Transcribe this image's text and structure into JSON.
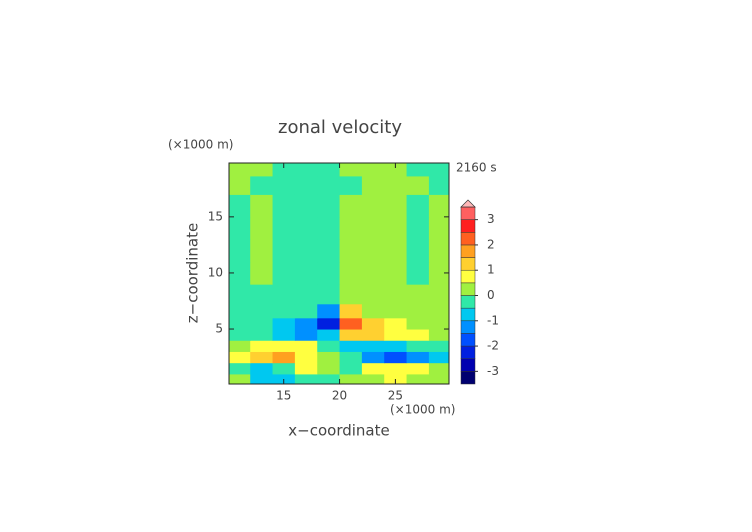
{
  "chart_data": {
    "type": "contour",
    "title": "zonal velocity",
    "time_label": "2160 s",
    "x_unit": "(×1000 m)",
    "y_unit": "(×1000 m)",
    "xlabel": "x−coordinate",
    "ylabel": "z−coordinate",
    "xlim": [
      10.1,
      29.8
    ],
    "ylim": [
      0.1,
      19.8
    ],
    "xticks": [
      15,
      20,
      25
    ],
    "yticks": [
      5,
      10,
      15
    ],
    "x": [
      11,
      13,
      15,
      17,
      19,
      21,
      23,
      25,
      27,
      29
    ],
    "y": [
      0.5,
      1.5,
      2.5,
      3.5,
      4.5,
      5.5,
      6.5,
      8,
      10,
      12,
      14,
      16,
      18,
      19.3
    ],
    "z": [
      [
        0.3,
        -0.6,
        -0.8,
        -0.4,
        -0.2,
        0.3,
        0.4,
        0.6,
        0.3,
        0.2
      ],
      [
        -0.3,
        -0.6,
        -0.5,
        0.6,
        0.4,
        -0.3,
        0.6,
        0.8,
        0.6,
        0.3
      ],
      [
        0.8,
        1.3,
        1.8,
        0.7,
        0.3,
        -0.5,
        -1.3,
        -1.8,
        -1.3,
        -0.8
      ],
      [
        0.3,
        0.8,
        0.9,
        0.6,
        -0.3,
        -0.8,
        -0.7,
        -0.6,
        -0.3,
        -0.2
      ],
      [
        -0.2,
        -0.3,
        -0.8,
        -1.3,
        -1.0,
        1.0,
        1.2,
        0.8,
        0.6,
        0.2
      ],
      [
        -0.2,
        -0.2,
        -0.7,
        -1.2,
        -2.3,
        2.2,
        1.2,
        0.7,
        0.3,
        0.2
      ],
      [
        -0.2,
        -0.2,
        -0.2,
        -0.4,
        -1.2,
        1.2,
        0.4,
        0.2,
        0.2,
        0.2
      ],
      [
        -0.2,
        -0.2,
        -0.2,
        -0.2,
        -0.3,
        0.3,
        0.2,
        0.2,
        0.2,
        0.2
      ],
      [
        -0.2,
        0.2,
        -0.2,
        -0.2,
        -0.2,
        0.2,
        0.2,
        0.2,
        -0.2,
        0.2
      ],
      [
        -0.2,
        0.2,
        -0.2,
        -0.2,
        -0.2,
        0.2,
        0.2,
        0.2,
        -0.2,
        0.2
      ],
      [
        -0.2,
        0.2,
        -0.2,
        -0.2,
        -0.2,
        0.2,
        0.2,
        0.2,
        -0.2,
        0.2
      ],
      [
        -0.2,
        0.2,
        -0.2,
        -0.2,
        -0.2,
        0.2,
        0.2,
        0.2,
        -0.2,
        0.2
      ],
      [
        0.2,
        -0.1,
        -0.2,
        -0.2,
        -0.2,
        -0.2,
        0.2,
        0.2,
        0.1,
        -0.2
      ],
      [
        0.2,
        0.1,
        -0.2,
        -0.2,
        -0.2,
        0.2,
        0.2,
        0.2,
        -0.1,
        -0.2
      ]
    ],
    "colorbar": {
      "levels": [
        -3.5,
        -3,
        -2.5,
        -2,
        -1.5,
        -1,
        -0.5,
        0,
        0.5,
        1,
        1.5,
        2,
        2.5,
        3,
        3.5
      ],
      "colors": [
        "#000070",
        "#0000b0",
        "#0020e0",
        "#0050ff",
        "#0090ff",
        "#00c8f0",
        "#30e8a8",
        "#a0f040",
        "#ffff40",
        "#ffd030",
        "#ffa020",
        "#ff6020",
        "#ff2020",
        "#ff6060",
        "#ff9898"
      ],
      "extend_color": "#ffb8b8",
      "ticks": [
        -3,
        -2,
        -1,
        0,
        1,
        2,
        3
      ]
    }
  }
}
